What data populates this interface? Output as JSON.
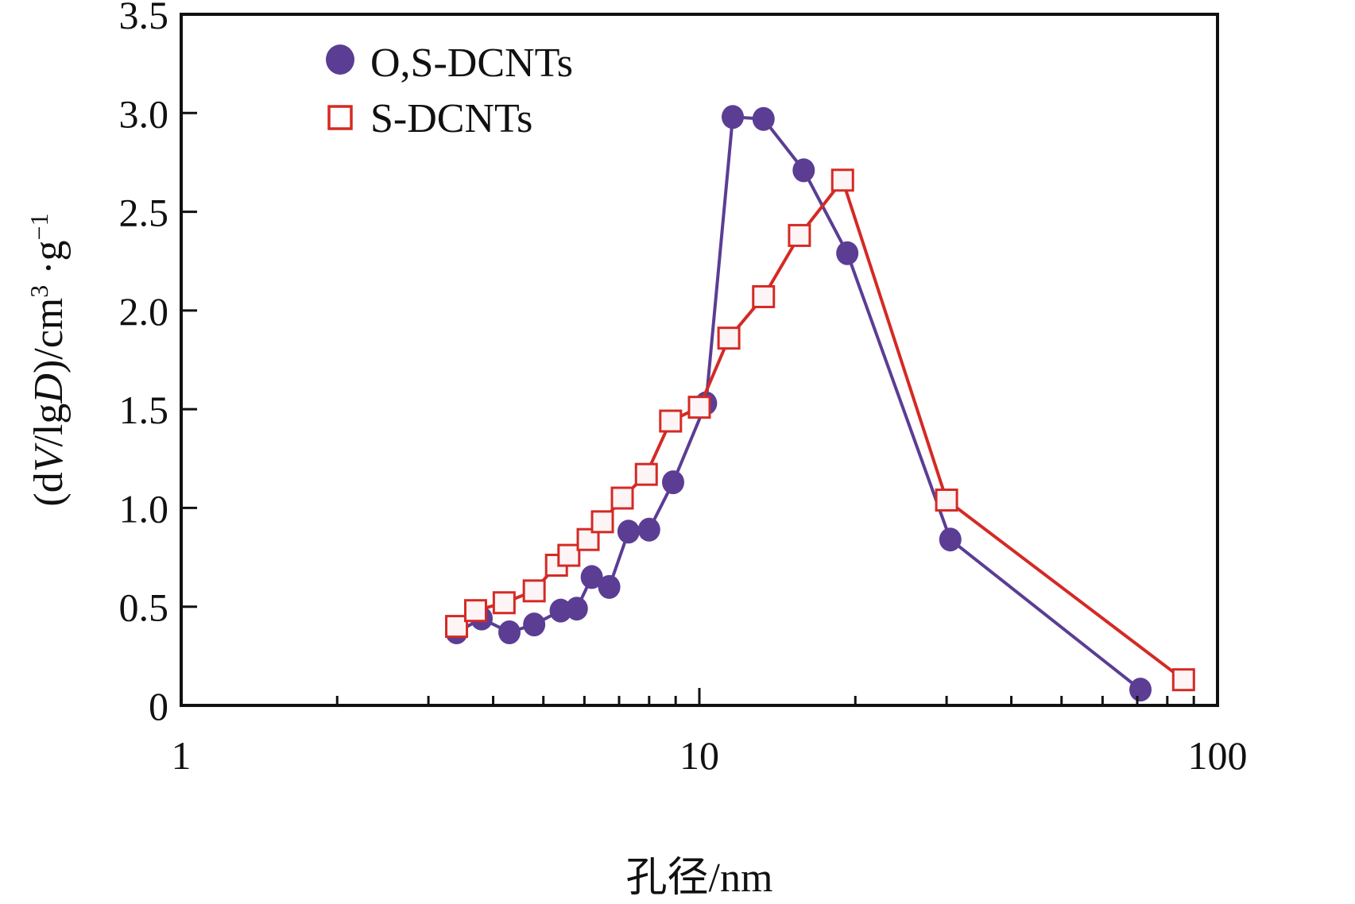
{
  "chart_data": {
    "type": "line",
    "title": "",
    "xlabel": "孔径/nm",
    "ylabel_parts": {
      "prefix": "(d",
      "italic_v": "V",
      "mid": "/lg",
      "italic_d": "D",
      "suffix": ")/cm",
      "sup3": "3",
      "dot_g": " ·g",
      "sup_neg1": "−1"
    },
    "ylabel": "(dV/lgD)/cm³·g⁻¹",
    "xscale": "log",
    "xlim": [
      1,
      100
    ],
    "ylim": [
      0,
      3.5
    ],
    "x_ticks": [
      1,
      10,
      100
    ],
    "x_tick_labels": [
      "1",
      "10",
      "100"
    ],
    "y_ticks": [
      0,
      0.5,
      1.0,
      1.5,
      2.0,
      2.5,
      3.0,
      3.5
    ],
    "y_tick_labels": [
      "0",
      "0.5",
      "1.0",
      "1.5",
      "2.0",
      "2.5",
      "3.0",
      "3.5"
    ],
    "grid": false,
    "legend_position": "top-left",
    "series": [
      {
        "name": "O,S-DCNTs",
        "marker": "filled-circle",
        "color": "#5b3d94",
        "x": [
          3.4,
          3.8,
          4.3,
          4.8,
          5.4,
          5.8,
          6.2,
          6.7,
          7.3,
          8.0,
          8.9,
          10.3,
          11.6,
          13.3,
          15.9,
          19.3,
          30.5,
          71.0
        ],
        "y": [
          0.37,
          0.44,
          0.37,
          0.41,
          0.48,
          0.49,
          0.65,
          0.6,
          0.88,
          0.89,
          1.13,
          1.53,
          2.98,
          2.97,
          2.71,
          2.29,
          0.84,
          0.08
        ]
      },
      {
        "name": "S-DCNTs",
        "marker": "open-square",
        "color": "#d42a25",
        "x": [
          3.4,
          3.7,
          4.2,
          4.8,
          5.3,
          5.6,
          6.1,
          6.5,
          7.1,
          7.9,
          8.8,
          10.0,
          11.4,
          13.3,
          15.6,
          18.9,
          30.0,
          86.0
        ],
        "y": [
          0.4,
          0.48,
          0.52,
          0.58,
          0.71,
          0.76,
          0.84,
          0.93,
          1.05,
          1.17,
          1.44,
          1.51,
          1.86,
          2.07,
          2.38,
          2.66,
          1.04,
          0.13
        ]
      }
    ]
  }
}
